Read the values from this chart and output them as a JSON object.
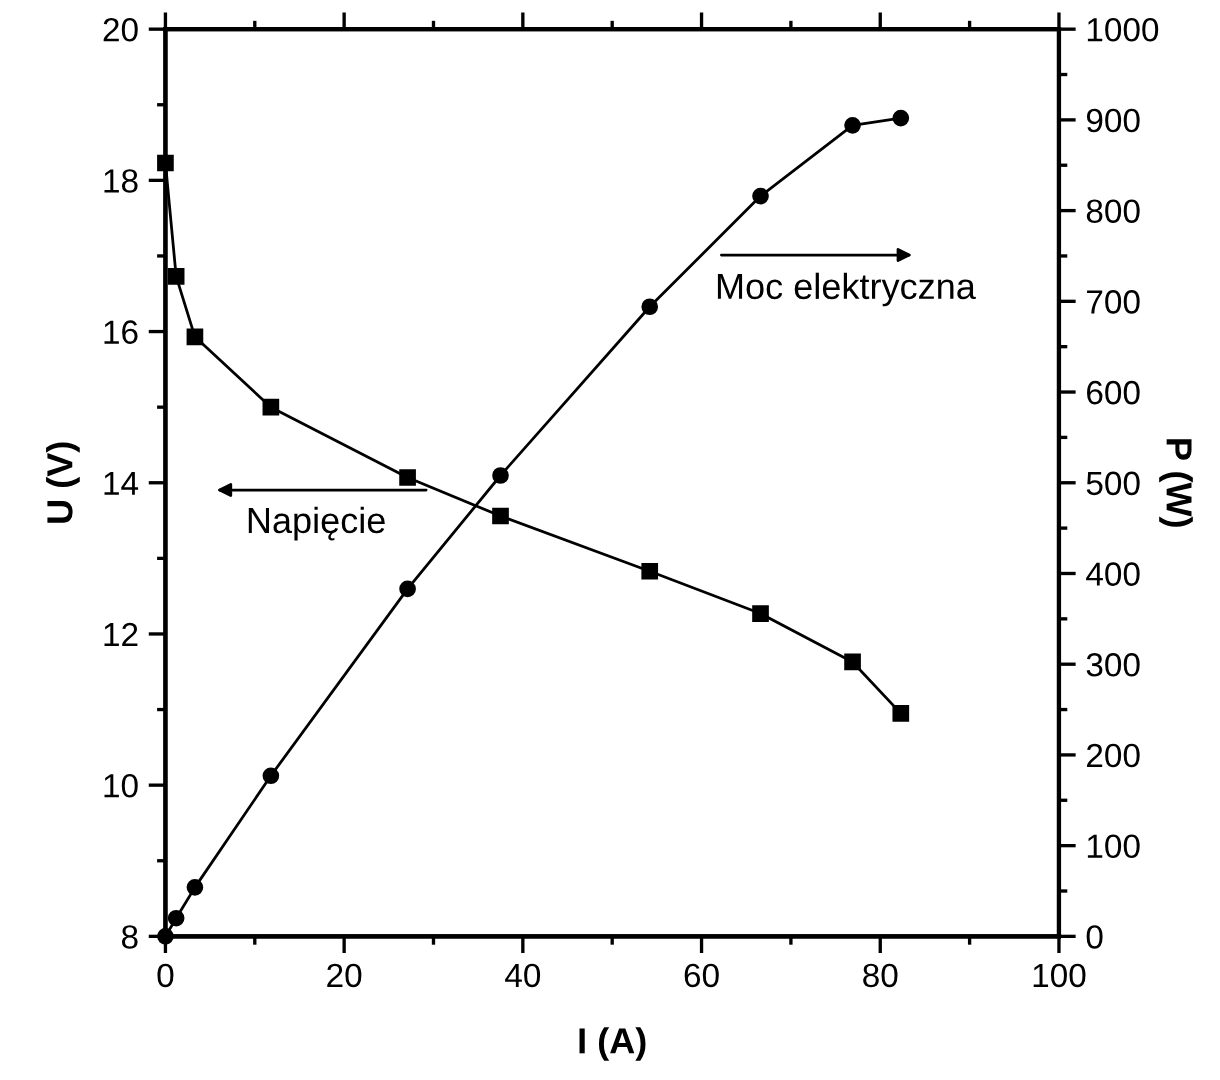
{
  "chart_data": {
    "type": "line",
    "xlabel": "I (A)",
    "ylabel": "U (V)",
    "y2label": "P (W)",
    "xlim": [
      0,
      100
    ],
    "xticks": [
      0,
      20,
      40,
      60,
      80,
      100
    ],
    "ylim": [
      8,
      20
    ],
    "yticks": [
      8,
      10,
      12,
      14,
      16,
      18,
      20
    ],
    "y2lim": [
      0,
      1000
    ],
    "y2ticks": [
      0,
      100,
      200,
      300,
      400,
      500,
      600,
      700,
      800,
      900,
      1000
    ],
    "series": [
      {
        "color": "#000000",
        "marker": "square",
        "x": [
          0,
          1.2,
          3.3,
          11.8,
          27.1,
          37.5,
          54.2,
          66.6,
          76.9,
          82.3
        ],
        "values": [
          18.23,
          16.73,
          15.93,
          15.0,
          14.07,
          13.56,
          12.83,
          12.27,
          11.63,
          10.95
        ]
      },
      {
        "color": "#000000",
        "marker": "circle",
        "axis": "y2",
        "x": [
          0,
          1.2,
          3.3,
          11.8,
          27.1,
          37.5,
          54.2,
          66.6,
          76.9,
          82.3
        ],
        "values": [
          0,
          20,
          54,
          177,
          383,
          508,
          694,
          816,
          894,
          902
        ]
      }
    ],
    "annotations": [
      "Napięcie",
      "Moc elektryczna"
    ],
    "grid": false,
    "legend": false,
    "line_style": "solid"
  }
}
